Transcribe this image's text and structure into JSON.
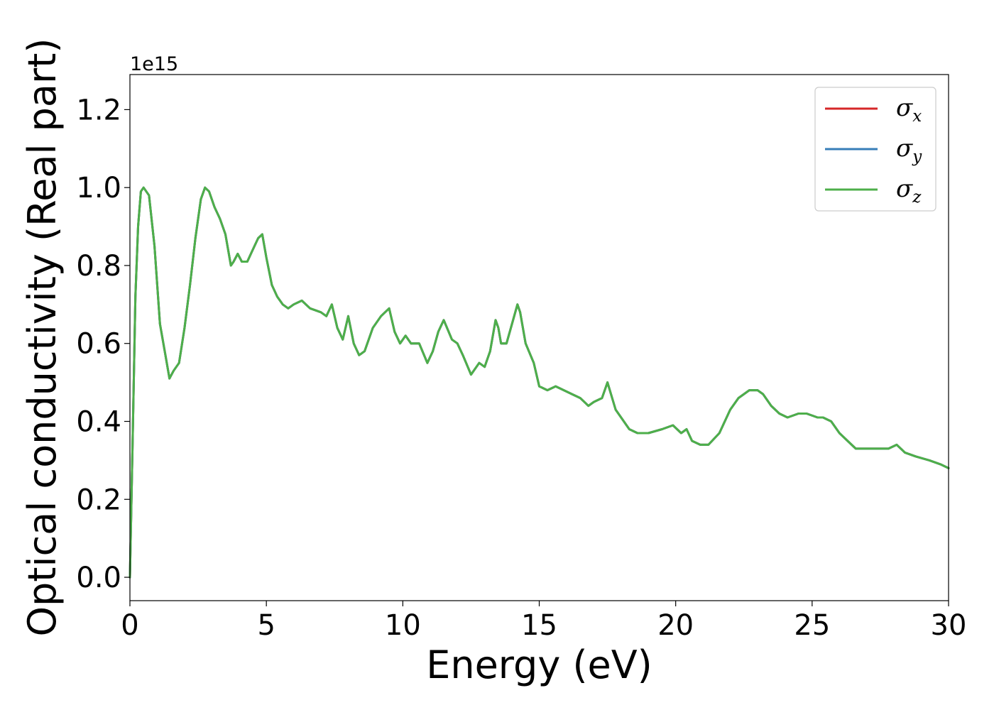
{
  "chart_data": {
    "type": "line",
    "xlabel": "Energy (eV)",
    "ylabel": "Optical conductivity (Real part)",
    "y_offset_label": "1e15",
    "xlim": [
      0,
      30
    ],
    "ylim": [
      -0.06,
      1.29
    ],
    "xticks": [
      0,
      5,
      10,
      15,
      20,
      25,
      30
    ],
    "xtick_labels": [
      "0",
      "5",
      "10",
      "15",
      "20",
      "25",
      "30"
    ],
    "yticks": [
      0.0,
      0.2,
      0.4,
      0.6,
      0.8,
      1.0,
      1.2
    ],
    "ytick_labels": [
      "0.0",
      "0.2",
      "0.4",
      "0.6",
      "0.8",
      "1.0",
      "1.2"
    ],
    "grid": false,
    "legend_position": "top-right",
    "x": [
      0.0,
      0.1,
      0.2,
      0.3,
      0.4,
      0.5,
      0.7,
      0.9,
      1.1,
      1.3,
      1.45,
      1.6,
      1.8,
      2.0,
      2.2,
      2.4,
      2.6,
      2.75,
      2.9,
      3.1,
      3.3,
      3.5,
      3.7,
      3.8,
      3.95,
      4.1,
      4.3,
      4.5,
      4.7,
      4.85,
      5.0,
      5.2,
      5.4,
      5.6,
      5.8,
      6.0,
      6.3,
      6.6,
      7.0,
      7.2,
      7.4,
      7.6,
      7.8,
      8.0,
      8.2,
      8.4,
      8.6,
      8.9,
      9.2,
      9.5,
      9.7,
      9.9,
      10.1,
      10.3,
      10.6,
      10.9,
      11.1,
      11.3,
      11.5,
      11.8,
      12.0,
      12.2,
      12.5,
      12.8,
      13.0,
      13.2,
      13.4,
      13.5,
      13.6,
      13.8,
      14.0,
      14.2,
      14.3,
      14.5,
      14.8,
      15.0,
      15.3,
      15.6,
      15.9,
      16.2,
      16.5,
      16.8,
      17.0,
      17.3,
      17.5,
      17.8,
      18.0,
      18.3,
      18.6,
      19.0,
      19.5,
      19.9,
      20.2,
      20.4,
      20.6,
      20.9,
      21.2,
      21.6,
      22.0,
      22.3,
      22.7,
      23.0,
      23.2,
      23.5,
      23.8,
      24.1,
      24.5,
      24.8,
      25.2,
      25.4,
      25.7,
      26.0,
      26.3,
      26.6,
      27.0,
      27.4,
      27.8,
      28.1,
      28.4,
      28.8,
      29.3,
      29.7,
      30.0
    ],
    "series": [
      {
        "name": "σx",
        "label_base": "σ",
        "label_sub": "x",
        "color": "#d62728",
        "values": [
          0.0,
          0.35,
          0.72,
          0.9,
          0.99,
          1.0,
          0.98,
          0.85,
          0.65,
          0.57,
          0.51,
          0.53,
          0.55,
          0.64,
          0.75,
          0.87,
          0.97,
          1.0,
          0.99,
          0.95,
          0.92,
          0.88,
          0.8,
          0.81,
          0.83,
          0.81,
          0.81,
          0.84,
          0.87,
          0.88,
          0.82,
          0.75,
          0.72,
          0.7,
          0.69,
          0.7,
          0.71,
          0.69,
          0.68,
          0.67,
          0.7,
          0.64,
          0.61,
          0.67,
          0.6,
          0.57,
          0.58,
          0.64,
          0.67,
          0.69,
          0.63,
          0.6,
          0.62,
          0.6,
          0.6,
          0.55,
          0.58,
          0.63,
          0.66,
          0.61,
          0.6,
          0.57,
          0.52,
          0.55,
          0.54,
          0.58,
          0.66,
          0.64,
          0.6,
          0.6,
          0.65,
          0.7,
          0.68,
          0.6,
          0.55,
          0.49,
          0.48,
          0.49,
          0.48,
          0.47,
          0.46,
          0.44,
          0.45,
          0.46,
          0.5,
          0.43,
          0.41,
          0.38,
          0.37,
          0.37,
          0.38,
          0.39,
          0.37,
          0.38,
          0.35,
          0.34,
          0.34,
          0.37,
          0.43,
          0.46,
          0.48,
          0.48,
          0.47,
          0.44,
          0.42,
          0.41,
          0.42,
          0.42,
          0.41,
          0.41,
          0.4,
          0.37,
          0.35,
          0.33,
          0.33,
          0.33,
          0.33,
          0.34,
          0.32,
          0.31,
          0.3,
          0.29,
          0.28
        ]
      },
      {
        "name": "σy",
        "label_base": "σ",
        "label_sub": "y",
        "color": "#377eb8",
        "values": [
          0.0,
          0.35,
          0.72,
          0.9,
          0.99,
          1.0,
          0.98,
          0.85,
          0.65,
          0.57,
          0.51,
          0.53,
          0.55,
          0.64,
          0.75,
          0.87,
          0.97,
          1.0,
          0.99,
          0.95,
          0.92,
          0.88,
          0.8,
          0.81,
          0.83,
          0.81,
          0.81,
          0.84,
          0.87,
          0.88,
          0.82,
          0.75,
          0.72,
          0.7,
          0.69,
          0.7,
          0.71,
          0.69,
          0.68,
          0.67,
          0.7,
          0.64,
          0.61,
          0.67,
          0.6,
          0.57,
          0.58,
          0.64,
          0.67,
          0.69,
          0.63,
          0.6,
          0.62,
          0.6,
          0.6,
          0.55,
          0.58,
          0.63,
          0.66,
          0.61,
          0.6,
          0.57,
          0.52,
          0.55,
          0.54,
          0.58,
          0.66,
          0.64,
          0.6,
          0.6,
          0.65,
          0.7,
          0.68,
          0.6,
          0.55,
          0.49,
          0.48,
          0.49,
          0.48,
          0.47,
          0.46,
          0.44,
          0.45,
          0.46,
          0.5,
          0.43,
          0.41,
          0.38,
          0.37,
          0.37,
          0.38,
          0.39,
          0.37,
          0.38,
          0.35,
          0.34,
          0.34,
          0.37,
          0.43,
          0.46,
          0.48,
          0.48,
          0.47,
          0.44,
          0.42,
          0.41,
          0.42,
          0.42,
          0.41,
          0.41,
          0.4,
          0.37,
          0.35,
          0.33,
          0.33,
          0.33,
          0.33,
          0.34,
          0.32,
          0.31,
          0.3,
          0.29,
          0.28
        ]
      },
      {
        "name": "σz",
        "label_base": "σ",
        "label_sub": "z",
        "color": "#4daf4a",
        "values": [
          0.0,
          0.35,
          0.72,
          0.9,
          0.99,
          1.0,
          0.98,
          0.85,
          0.65,
          0.57,
          0.51,
          0.53,
          0.55,
          0.64,
          0.75,
          0.87,
          0.97,
          1.0,
          0.99,
          0.95,
          0.92,
          0.88,
          0.8,
          0.81,
          0.83,
          0.81,
          0.81,
          0.84,
          0.87,
          0.88,
          0.82,
          0.75,
          0.72,
          0.7,
          0.69,
          0.7,
          0.71,
          0.69,
          0.68,
          0.67,
          0.7,
          0.64,
          0.61,
          0.67,
          0.6,
          0.57,
          0.58,
          0.64,
          0.67,
          0.69,
          0.63,
          0.6,
          0.62,
          0.6,
          0.6,
          0.55,
          0.58,
          0.63,
          0.66,
          0.61,
          0.6,
          0.57,
          0.52,
          0.55,
          0.54,
          0.58,
          0.66,
          0.64,
          0.6,
          0.6,
          0.65,
          0.7,
          0.68,
          0.6,
          0.55,
          0.49,
          0.48,
          0.49,
          0.48,
          0.47,
          0.46,
          0.44,
          0.45,
          0.46,
          0.5,
          0.43,
          0.41,
          0.38,
          0.37,
          0.37,
          0.38,
          0.39,
          0.37,
          0.38,
          0.35,
          0.34,
          0.34,
          0.37,
          0.43,
          0.46,
          0.48,
          0.48,
          0.47,
          0.44,
          0.42,
          0.41,
          0.42,
          0.42,
          0.41,
          0.41,
          0.4,
          0.37,
          0.35,
          0.33,
          0.33,
          0.33,
          0.33,
          0.34,
          0.32,
          0.31,
          0.3,
          0.29,
          0.28
        ]
      }
    ]
  }
}
